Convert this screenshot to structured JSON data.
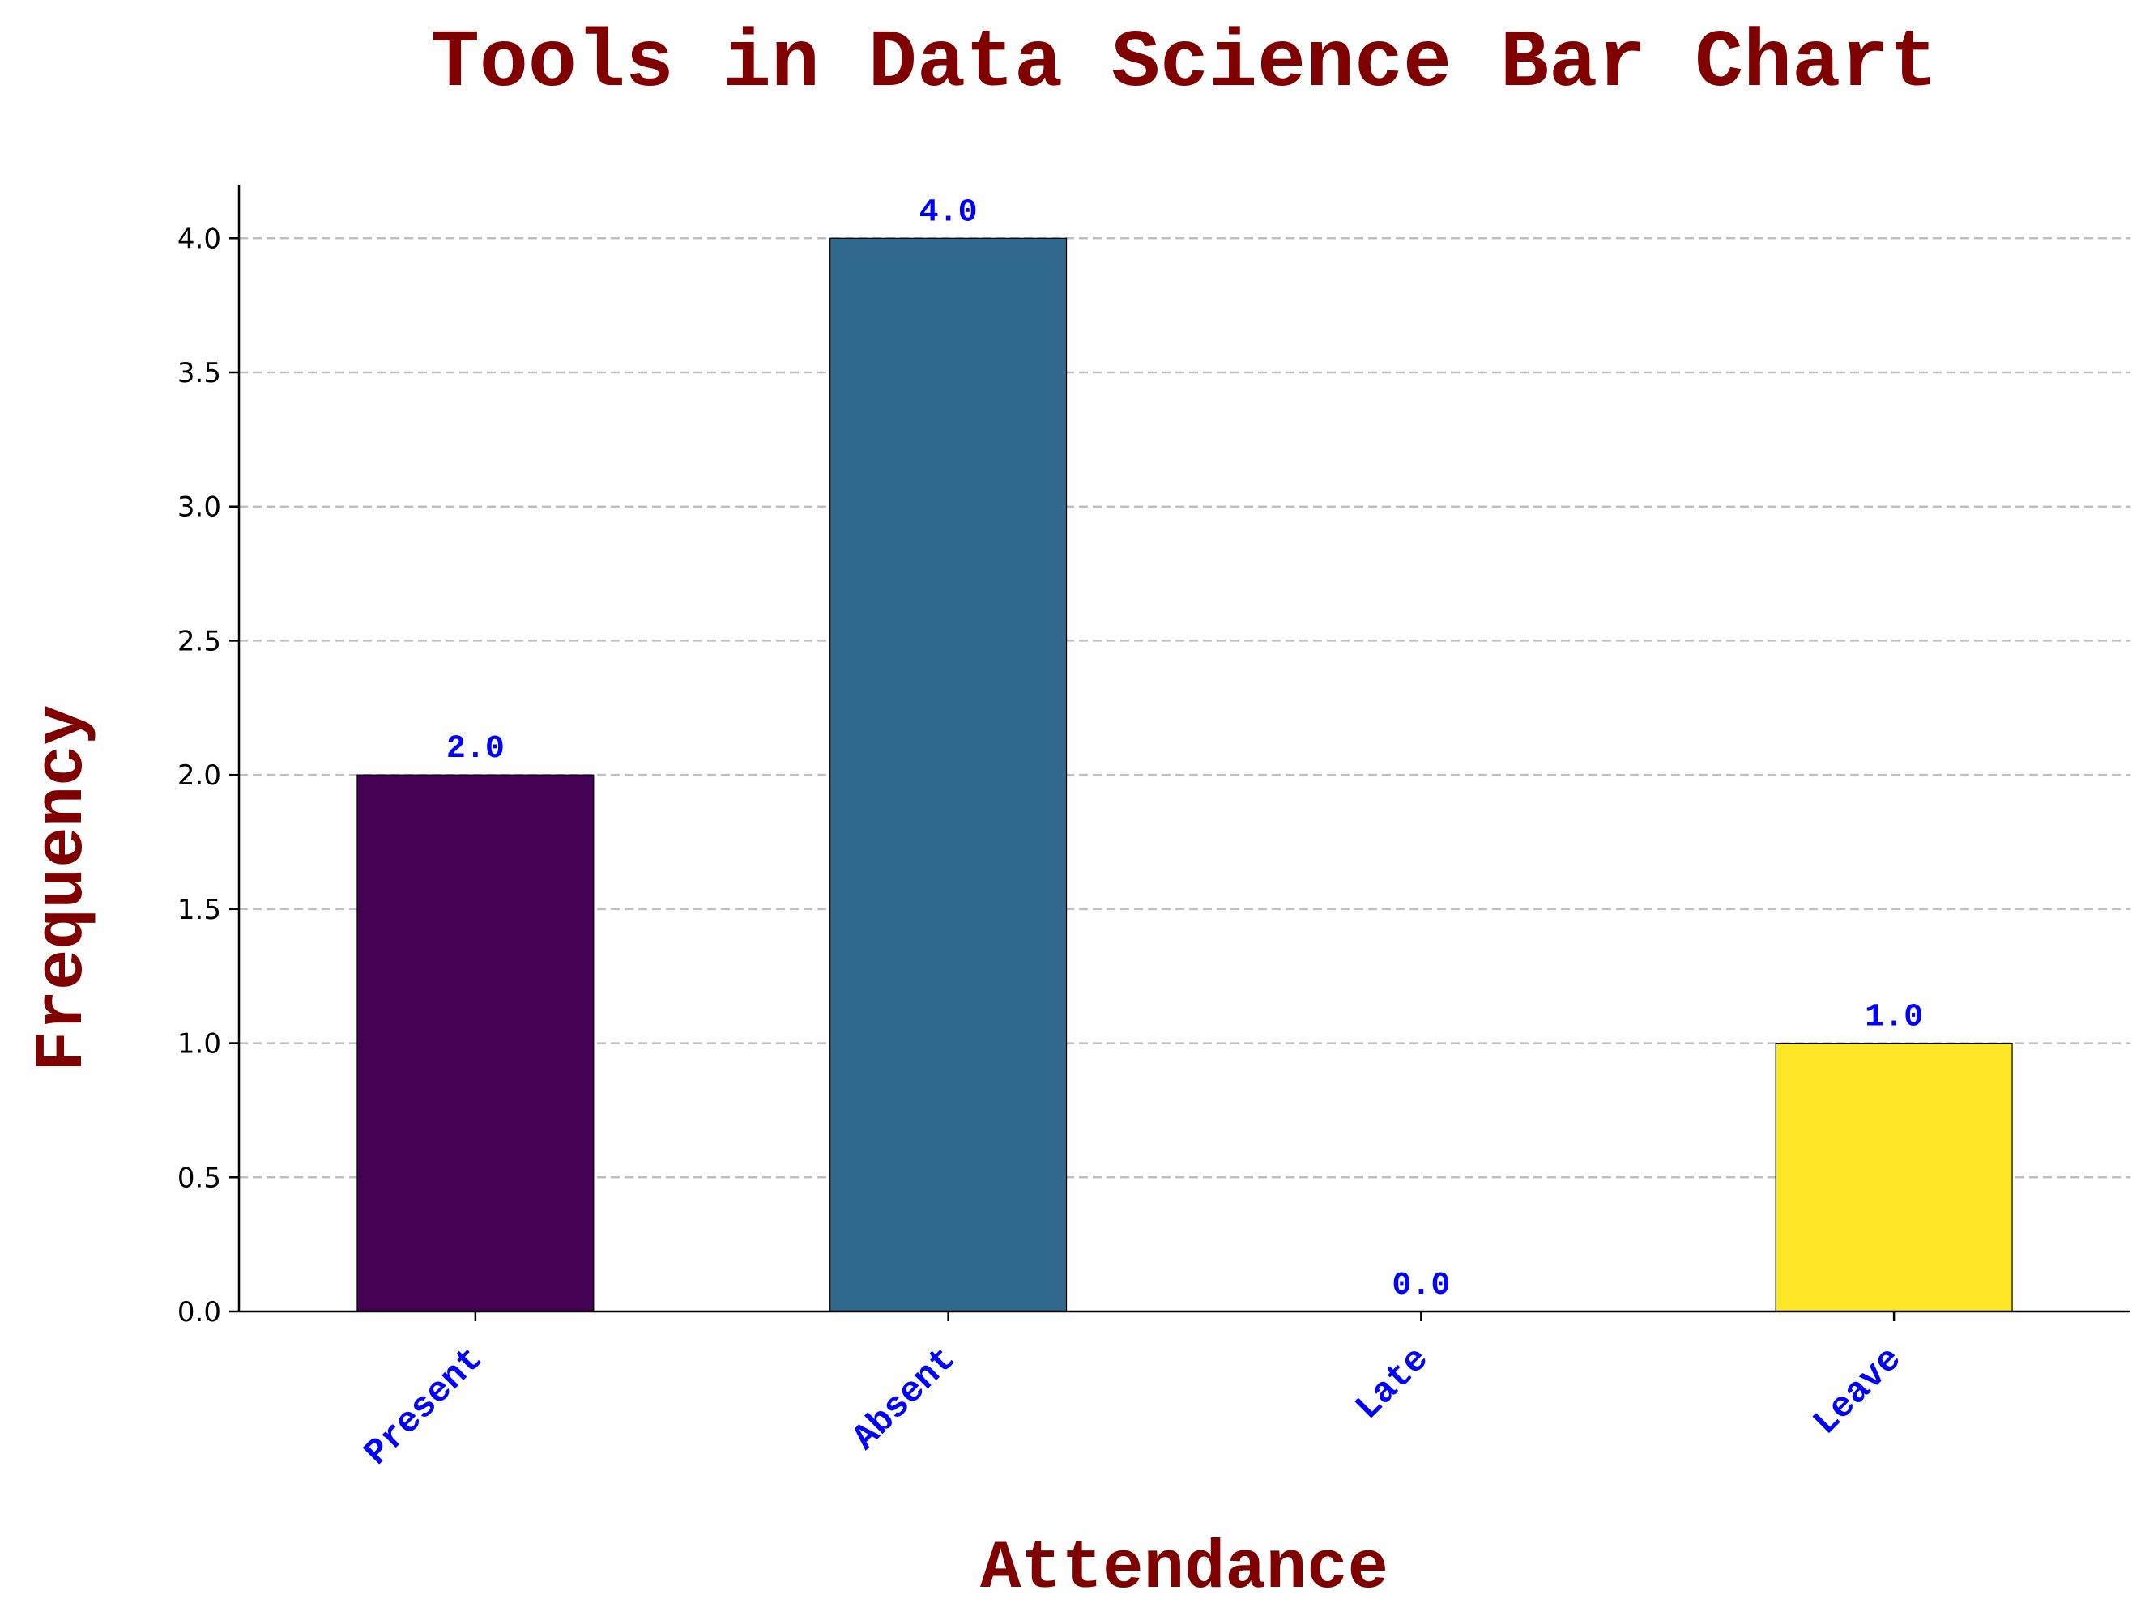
{
  "chart_data": {
    "type": "bar",
    "title": "Tools in Data Science Bar Chart",
    "xlabel": "Attendance",
    "ylabel": "Frequency",
    "categories": [
      "Present",
      "Absent",
      "Late",
      "Leave"
    ],
    "values": [
      2.0,
      4.0,
      0.0,
      1.0
    ],
    "value_labels": [
      "2.0",
      "4.0",
      "0.0",
      "1.0"
    ],
    "bar_colors": [
      "#440154",
      "#31688e",
      "#35b779",
      "#fde725"
    ],
    "ylim": [
      0,
      4.2
    ],
    "yticks": [
      0.0,
      0.5,
      1.0,
      1.5,
      2.0,
      2.5,
      3.0,
      3.5,
      4.0
    ],
    "ytick_labels": [
      "0.0",
      "0.5",
      "1.0",
      "1.5",
      "2.0",
      "2.5",
      "3.0",
      "3.5",
      "4.0"
    ],
    "grid": "y-dashed",
    "colors": {
      "title": "#800000",
      "axis_label": "#800000",
      "xtick_label": "#0000ff",
      "data_label": "#0000ff",
      "grid": "#c0c0c0"
    }
  }
}
